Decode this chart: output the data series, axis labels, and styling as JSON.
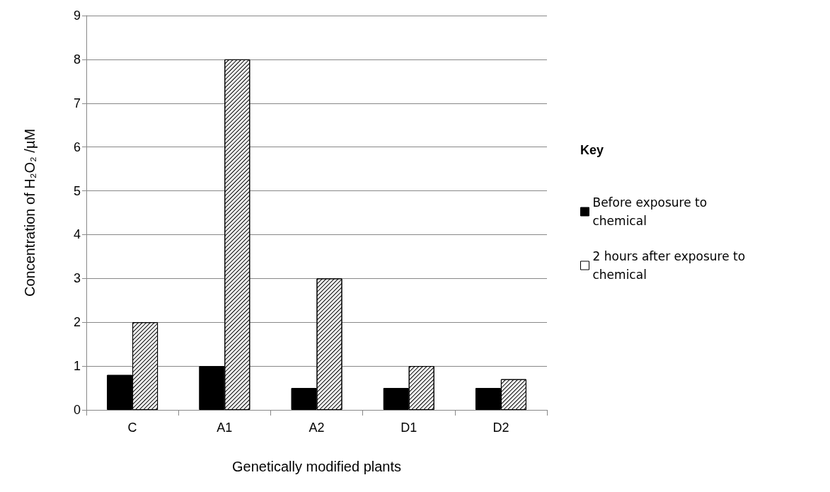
{
  "chart_data": {
    "type": "bar",
    "xlabel": "Genetically modified plants",
    "ylabel": "Concentration of H₂O₂ /µM",
    "categories": [
      "C",
      "A1",
      "A2",
      "D1",
      "D2"
    ],
    "series": [
      {
        "name": "Before exposure to chemical",
        "color": "#000000",
        "values": [
          0.8,
          1,
          0.5,
          0.5,
          0.5
        ]
      },
      {
        "name": "2 hours after exposure to chemical",
        "color": "#ffffff",
        "values": [
          2,
          8,
          3,
          1,
          0.7
        ]
      }
    ],
    "ylim": [
      0,
      9
    ],
    "yticks": [
      0,
      1,
      2,
      3,
      4,
      5,
      6,
      7,
      8,
      9
    ],
    "grid": "y",
    "legend": "right",
    "legend_title": "Key"
  }
}
